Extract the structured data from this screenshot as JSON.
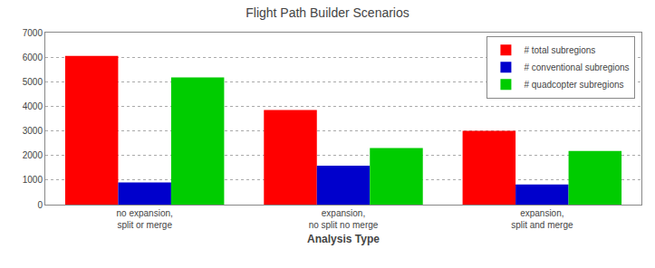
{
  "chart_data": {
    "type": "bar",
    "title": "Flight Path Builder Scenarios",
    "xlabel": "Analysis Type",
    "categories": [
      "no expansion,\nsplit or merge",
      "expansion,\nno split no merge",
      "expansion,\nsplit and merge"
    ],
    "series": [
      {
        "name": "# total subregions",
        "color": "#ff0000",
        "values": [
          6050,
          3850,
          3000
        ]
      },
      {
        "name": "# conventional subregions",
        "color": "#0000cc",
        "values": [
          900,
          1580,
          820
        ]
      },
      {
        "name": "# quadcopter subregions",
        "color": "#00cc00",
        "values": [
          5180,
          2300,
          2180
        ]
      }
    ],
    "ylim": [
      0,
      7000
    ],
    "yticks": [
      0,
      1000,
      2000,
      3000,
      4000,
      5000,
      6000,
      7000
    ],
    "grid": true,
    "legend": "upper right"
  }
}
